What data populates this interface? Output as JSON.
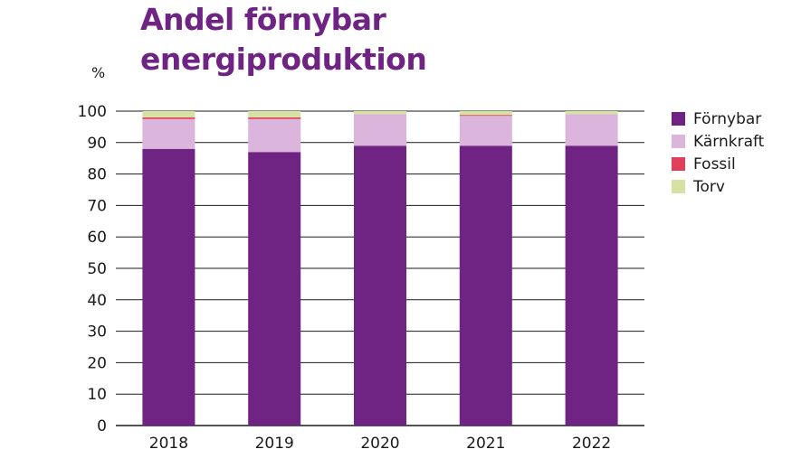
{
  "header": {
    "title_line1": "Andel förnybar",
    "title_line2": "energiproduktion"
  },
  "colors": {
    "title": "#6f2383",
    "Förnybar": "#6f2383",
    "Kärnkraft": "#dcb5dd",
    "Fossil": "#e33d5c",
    "Torv": "#d6e2a1"
  },
  "chart_data": {
    "type": "bar",
    "stacked": true,
    "title": "Andel förnybar energiproduktion",
    "xlabel": "",
    "ylabel": "%",
    "ylim": [
      0,
      100
    ],
    "yticks": [
      0,
      10,
      20,
      30,
      40,
      50,
      60,
      70,
      80,
      90,
      100
    ],
    "grid": true,
    "legend_position": "right",
    "categories": [
      "2018",
      "2019",
      "2020",
      "2021",
      "2022"
    ],
    "series": [
      {
        "name": "Förnybar",
        "values": [
          88,
          87,
          89,
          89,
          89
        ]
      },
      {
        "name": "Kärnkraft",
        "values": [
          9.5,
          10.5,
          10,
          9.5,
          10
        ]
      },
      {
        "name": "Fossil",
        "values": [
          0.5,
          0.5,
          0,
          0.3,
          0
        ]
      },
      {
        "name": "Torv",
        "values": [
          2,
          2,
          1,
          1.2,
          1
        ]
      }
    ]
  }
}
